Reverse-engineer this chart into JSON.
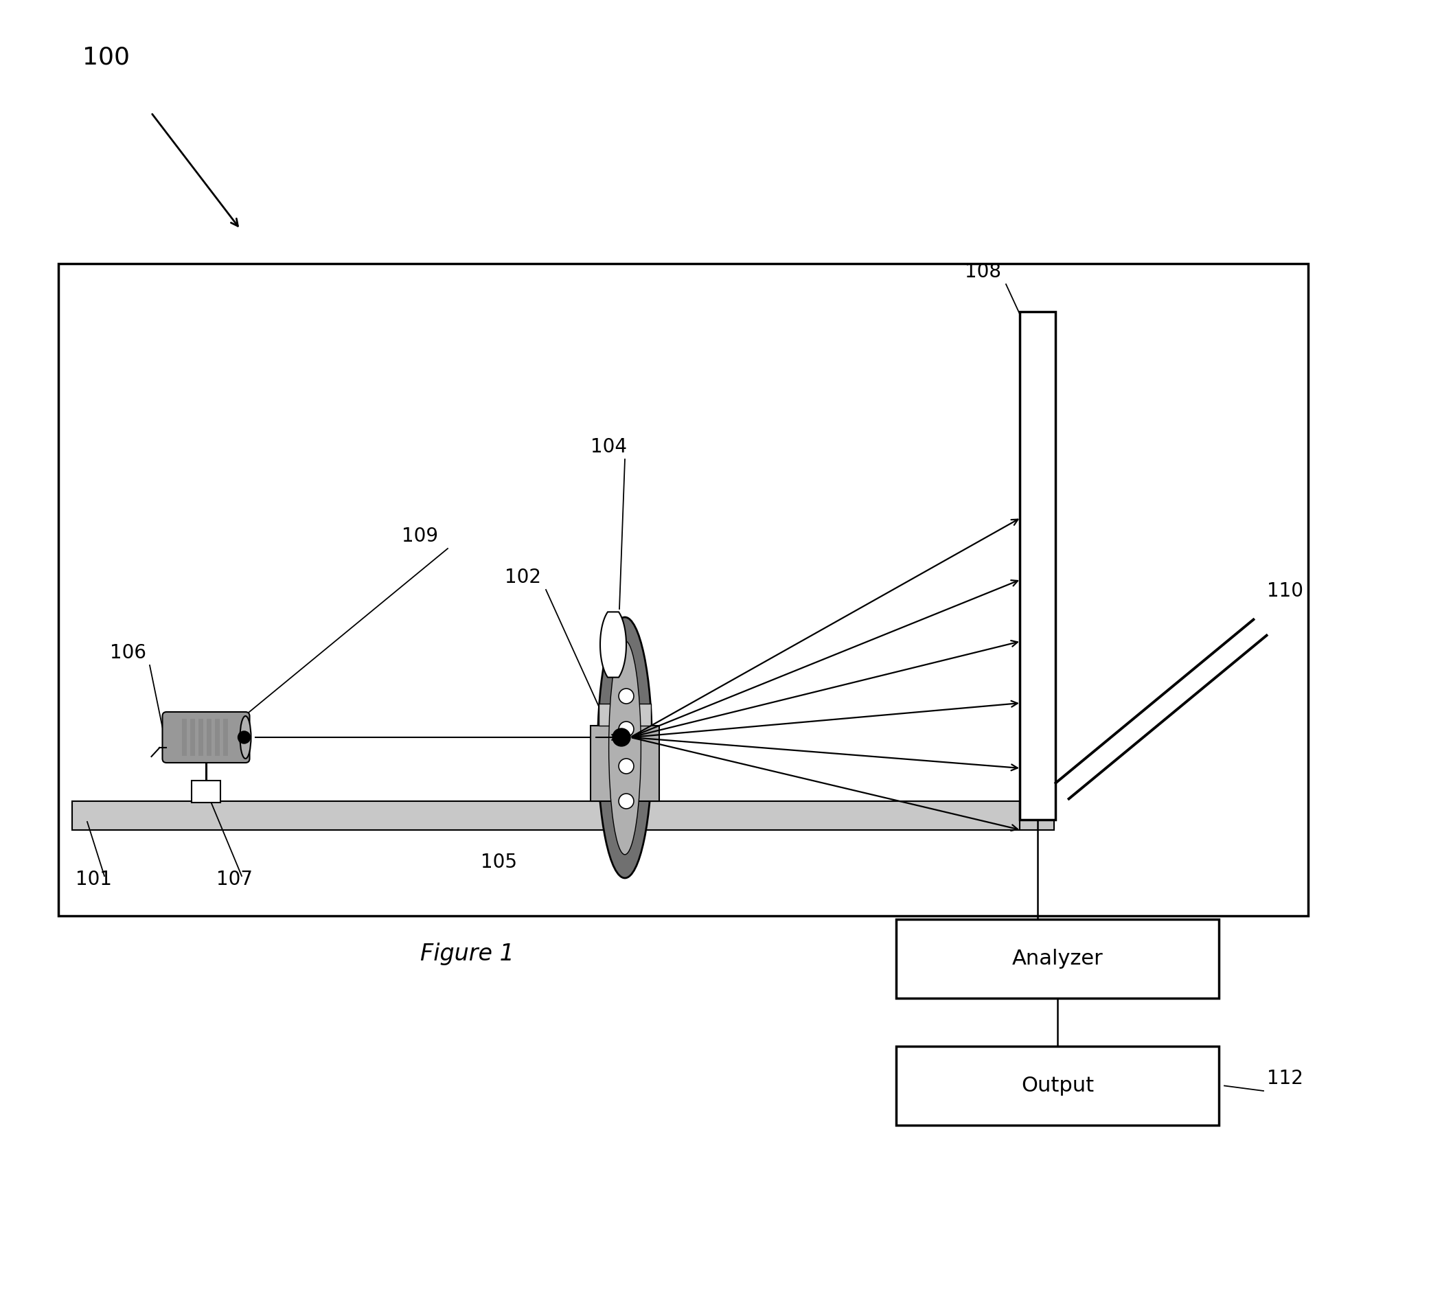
{
  "fig_width": 21.16,
  "fig_height": 19.14,
  "bg_color": "#ffffff",
  "label_100": "100",
  "label_104": "104",
  "label_106": "106",
  "label_109": "109",
  "label_102": "102",
  "label_105": "105",
  "label_101": "101",
  "label_107": "107",
  "label_108": "108",
  "label_110": "110",
  "label_112": "112",
  "label_analyzer": "Analyzer",
  "label_output": "Output",
  "label_figure": "Figure 1",
  "gray_light": "#c8c8c8",
  "gray_medium": "#989898",
  "gray_dark": "#707070",
  "gray_shade": "#b0b0b0"
}
